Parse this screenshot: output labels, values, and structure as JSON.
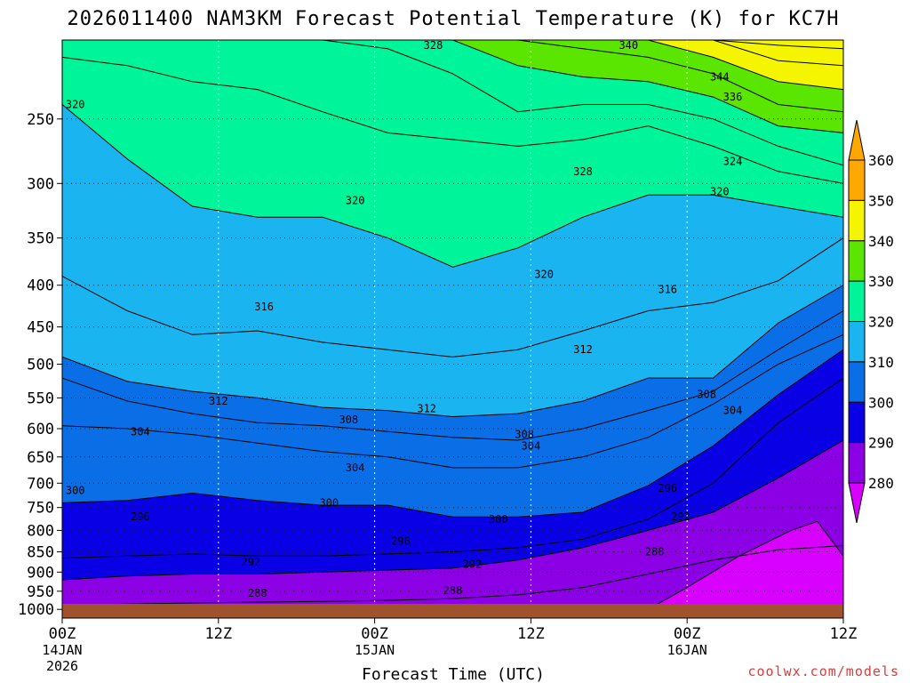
{
  "chart_data": {
    "type": "contour",
    "title": "2026011400 NAM3KM Forecast Potential Temperature (K) for KC7H",
    "xlabel": "Forecast Time (UTC)",
    "ylabel": "",
    "y_ticks": [
      250,
      300,
      350,
      400,
      450,
      500,
      550,
      600,
      650,
      700,
      750,
      800,
      850,
      900,
      950,
      1000
    ],
    "y_scale": "log-pressure (inverted)",
    "ylim": [
      200,
      1025
    ],
    "x_range_hours": [
      0,
      60
    ],
    "x_ticks": [
      {
        "hour": 0,
        "top": "00Z",
        "mid": "14JAN",
        "bot": "2026"
      },
      {
        "hour": 12,
        "top": "12Z",
        "mid": "",
        "bot": ""
      },
      {
        "hour": 24,
        "top": "00Z",
        "mid": "15JAN",
        "bot": ""
      },
      {
        "hour": 36,
        "top": "12Z",
        "mid": "",
        "bot": ""
      },
      {
        "hour": 48,
        "top": "00Z",
        "mid": "16JAN",
        "bot": ""
      },
      {
        "hour": 60,
        "top": "12Z",
        "mid": "",
        "bot": ""
      }
    ],
    "grid": "dotted",
    "colorbar": {
      "labels": [
        "360",
        "350",
        "340",
        "330",
        "320",
        "310",
        "300",
        "290",
        "280"
      ],
      "colors": {
        "c270": "#d800ff",
        "c280": "#8c00e6",
        "c290": "#0a00e6",
        "c300": "#0a6ee6",
        "c310": "#1ab4f0",
        "c320": "#00f59a",
        "c330": "#5ae600",
        "c340": "#f5f500",
        "c350": "#ffa800"
      }
    },
    "isentropes": [
      {
        "theta": 288,
        "p": [
          990,
          985,
          982,
          980,
          978,
          975,
          970,
          960,
          940,
          905,
          870,
          845,
          835
        ]
      },
      {
        "theta": 292,
        "p": [
          920,
          910,
          905,
          905,
          900,
          895,
          890,
          870,
          840,
          800,
          760,
          690,
          620
        ]
      },
      {
        "theta": 296,
        "p": [
          865,
          860,
          855,
          860,
          860,
          855,
          850,
          840,
          820,
          775,
          700,
          590,
          520
        ]
      },
      {
        "theta": 300,
        "p": [
          740,
          735,
          720,
          735,
          745,
          745,
          770,
          770,
          760,
          705,
          630,
          545,
          480
        ]
      },
      {
        "theta": 304,
        "p": [
          595,
          600,
          610,
          625,
          640,
          650,
          670,
          670,
          650,
          615,
          560,
          500,
          460
        ]
      },
      {
        "theta": 308,
        "p": [
          520,
          555,
          575,
          590,
          595,
          605,
          615,
          620,
          600,
          570,
          540,
          480,
          430
        ]
      },
      {
        "theta": 312,
        "p": [
          490,
          525,
          540,
          550,
          565,
          570,
          580,
          575,
          555,
          520,
          520,
          445,
          400
        ]
      },
      {
        "theta": 316,
        "p": [
          390,
          430,
          460,
          455,
          470,
          480,
          490,
          480,
          455,
          430,
          420,
          395,
          350
        ]
      },
      {
        "theta": 320,
        "p": [
          240,
          280,
          320,
          330,
          330,
          350,
          380,
          360,
          330,
          310,
          310,
          320,
          330
        ]
      },
      {
        "theta": 324,
        "p": [
          210,
          215,
          225,
          230,
          245,
          260,
          265,
          270,
          265,
          255,
          270,
          290,
          300
        ]
      },
      {
        "theta": 328,
        "p": [
          200,
          200,
          200,
          200,
          200,
          205,
          220,
          245,
          240,
          240,
          250,
          270,
          285
        ]
      },
      {
        "theta": 332,
        "p": [
          200,
          200,
          200,
          200,
          200,
          200,
          200,
          215,
          222,
          225,
          235,
          255,
          260
        ]
      },
      {
        "theta": 336,
        "p": [
          200,
          200,
          200,
          200,
          200,
          200,
          200,
          200,
          205,
          210,
          220,
          240,
          245
        ]
      },
      {
        "theta": 340,
        "p": [
          200,
          200,
          200,
          200,
          200,
          200,
          200,
          200,
          200,
          200,
          210,
          225,
          230
        ]
      },
      {
        "theta": 344,
        "p": [
          200,
          200,
          200,
          200,
          200,
          200,
          200,
          200,
          200,
          200,
          200,
          212,
          215
        ]
      },
      {
        "theta": 348,
        "p": [
          200,
          200,
          200,
          200,
          200,
          200,
          200,
          200,
          200,
          200,
          200,
          203,
          205
        ]
      }
    ],
    "cold_pool_280": [
      {
        "h": 45,
        "p": 1000
      },
      {
        "h": 48,
        "p": 940
      },
      {
        "h": 52,
        "p": 860
      },
      {
        "h": 56,
        "p": 800
      },
      {
        "h": 58,
        "p": 780
      },
      {
        "h": 60,
        "p": 860
      },
      {
        "h": 60,
        "p": 1000
      }
    ],
    "contour_labels": [
      {
        "text": "320",
        "h": 1,
        "p": 240
      },
      {
        "text": "328",
        "h": 28.5,
        "p": 203
      },
      {
        "text": "340",
        "h": 43.5,
        "p": 203
      },
      {
        "text": "344",
        "h": 50.5,
        "p": 222
      },
      {
        "text": "336",
        "h": 51.5,
        "p": 235
      },
      {
        "text": "324",
        "h": 51.5,
        "p": 282
      },
      {
        "text": "328",
        "h": 40,
        "p": 290
      },
      {
        "text": "320",
        "h": 50.5,
        "p": 307
      },
      {
        "text": "320",
        "h": 22.5,
        "p": 315
      },
      {
        "text": "320",
        "h": 37,
        "p": 388
      },
      {
        "text": "316",
        "h": 46.5,
        "p": 405
      },
      {
        "text": "316",
        "h": 15.5,
        "p": 425
      },
      {
        "text": "312",
        "h": 40,
        "p": 480
      },
      {
        "text": "308",
        "h": 49.5,
        "p": 545
      },
      {
        "text": "304",
        "h": 51.5,
        "p": 570
      },
      {
        "text": "312",
        "h": 12,
        "p": 555
      },
      {
        "text": "312",
        "h": 28,
        "p": 567
      },
      {
        "text": "308",
        "h": 22,
        "p": 585
      },
      {
        "text": "308",
        "h": 35.5,
        "p": 610
      },
      {
        "text": "304",
        "h": 36,
        "p": 630
      },
      {
        "text": "304",
        "h": 6,
        "p": 605
      },
      {
        "text": "304",
        "h": 22.5,
        "p": 670
      },
      {
        "text": "296",
        "h": 46.5,
        "p": 710
      },
      {
        "text": "300",
        "h": 1,
        "p": 715
      },
      {
        "text": "300",
        "h": 20.5,
        "p": 740
      },
      {
        "text": "300",
        "h": 33.5,
        "p": 775
      },
      {
        "text": "296",
        "h": 6,
        "p": 770
      },
      {
        "text": "292",
        "h": 47.5,
        "p": 770
      },
      {
        "text": "296",
        "h": 26,
        "p": 825
      },
      {
        "text": "288",
        "h": 45.5,
        "p": 850
      },
      {
        "text": "292",
        "h": 14.5,
        "p": 875
      },
      {
        "text": "292",
        "h": 31.5,
        "p": 880
      },
      {
        "text": "288",
        "h": 15,
        "p": 955
      },
      {
        "text": "288",
        "h": 30,
        "p": 948
      }
    ]
  },
  "footer": {
    "credit": "coolwx.com/models"
  }
}
